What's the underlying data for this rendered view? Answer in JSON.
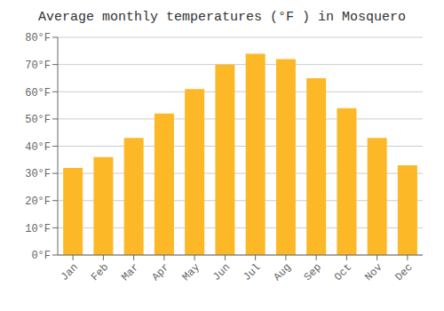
{
  "chart_data": {
    "type": "bar",
    "title": "Average monthly temperatures (°F ) in Mosquero",
    "categories": [
      "Jan",
      "Feb",
      "Mar",
      "Apr",
      "May",
      "Jun",
      "Jul",
      "Aug",
      "Sep",
      "Oct",
      "Nov",
      "Dec"
    ],
    "values": [
      32,
      36,
      43,
      52,
      61,
      70,
      74,
      72,
      65,
      54,
      43,
      33
    ],
    "color": "#FDB827",
    "ylim": [
      0,
      80
    ],
    "yticks": [
      {
        "value": 0,
        "label": "0°F"
      },
      {
        "value": 10,
        "label": "10°F"
      },
      {
        "value": 20,
        "label": "20°F"
      },
      {
        "value": 30,
        "label": "30°F"
      },
      {
        "value": 40,
        "label": "40°F"
      },
      {
        "value": 50,
        "label": "50°F"
      },
      {
        "value": 60,
        "label": "60°F"
      },
      {
        "value": 70,
        "label": "70°F"
      },
      {
        "value": 80,
        "label": "80°F"
      }
    ],
    "grid": true
  }
}
